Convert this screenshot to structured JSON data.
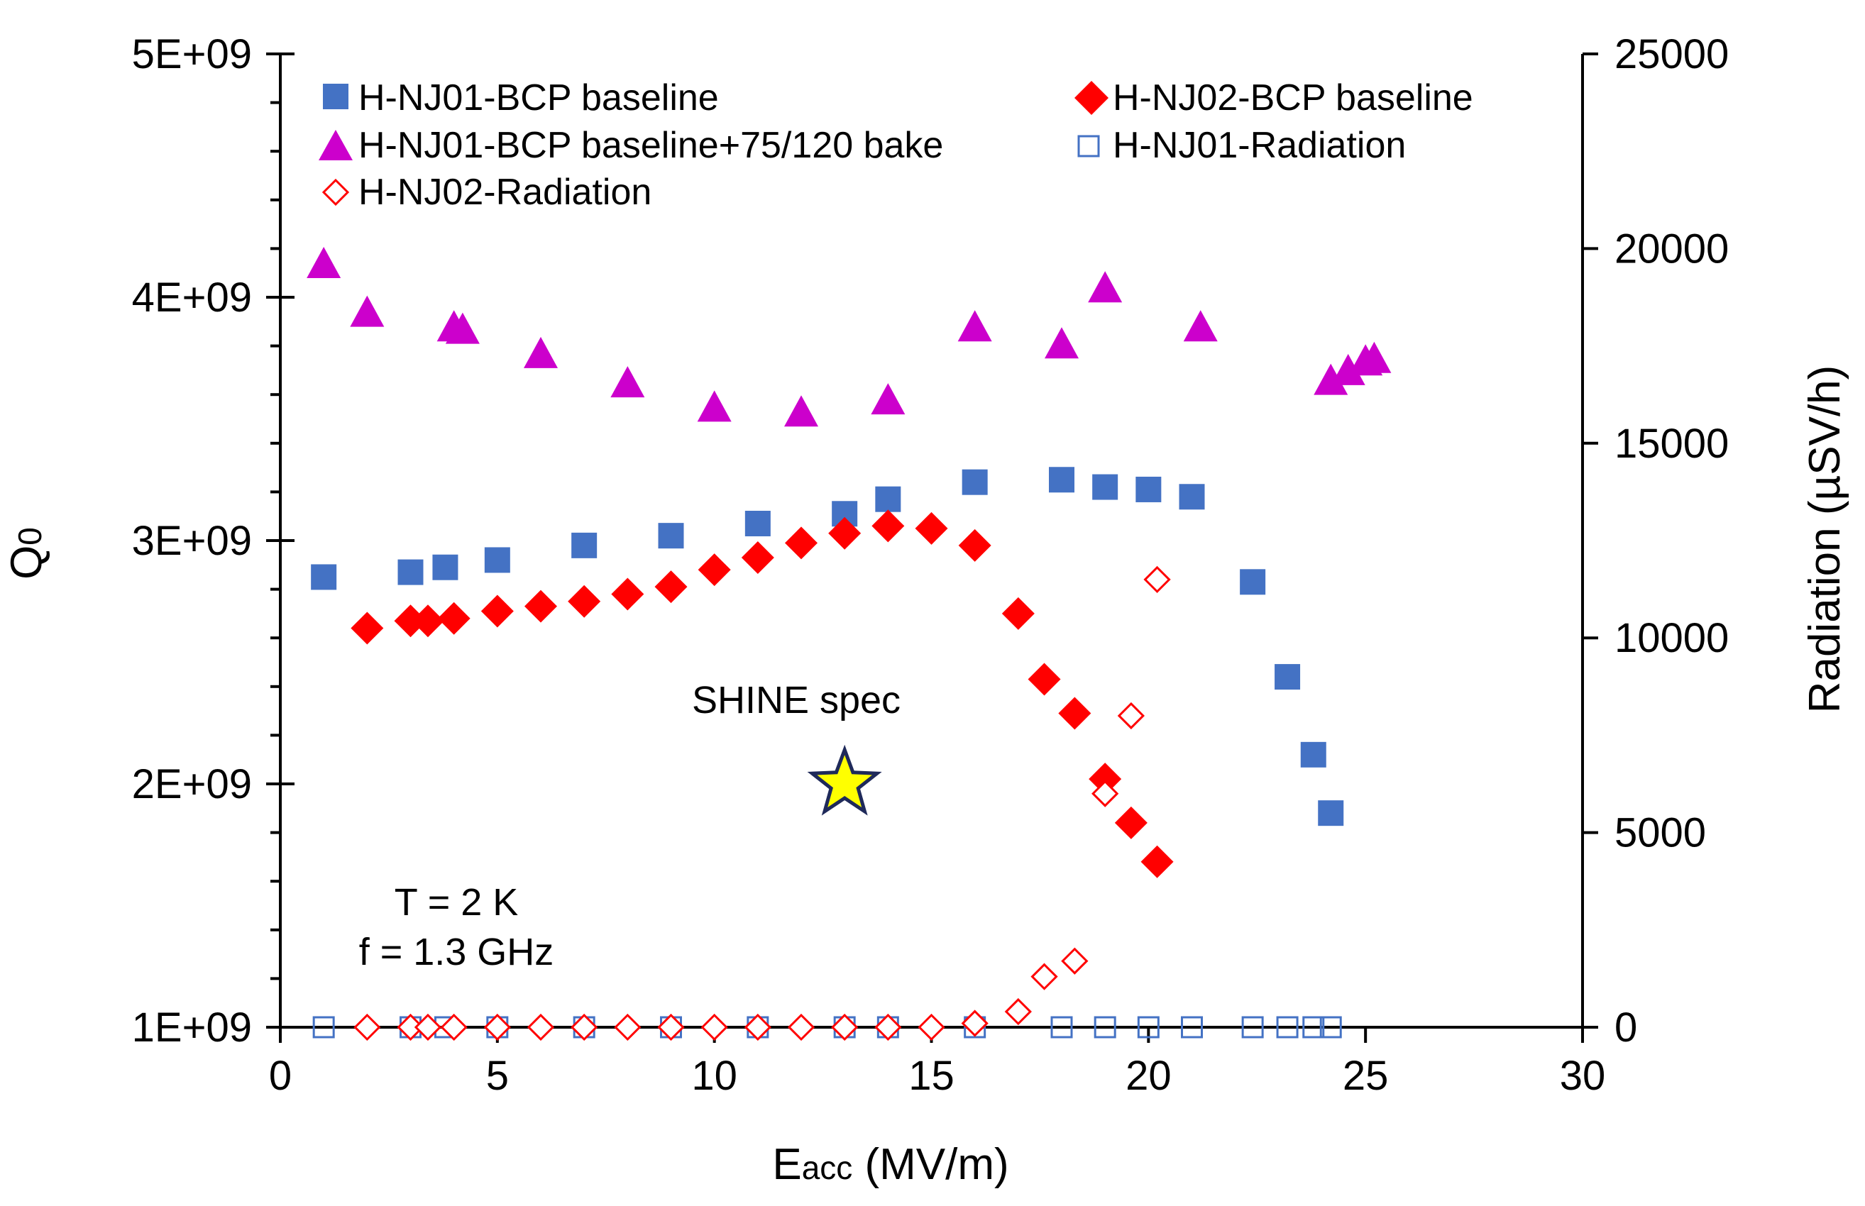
{
  "chart_data": {
    "type": "scatter",
    "title": "",
    "xlabel": "Eacc (MV/m)",
    "xlabel_main": "E",
    "xlabel_sub": "acc",
    "xlabel_rest": " (MV/m)",
    "ylabel": "Q0",
    "ylabel_main": "Q",
    "ylabel_sub": "0",
    "y2label": "Radiation (µSV/h)",
    "xlim": [
      0,
      30
    ],
    "ylim": [
      1000000000,
      5000000000
    ],
    "y2lim": [
      0,
      25000
    ],
    "grid": false,
    "legend_position": "top",
    "x_tick_labels": [
      "0",
      "5",
      "10",
      "15",
      "20",
      "25",
      "30"
    ],
    "y_tick_labels": [
      "1E+09",
      "2E+09",
      "3E+09",
      "4E+09",
      "5E+09"
    ],
    "y2_tick_labels": [
      "0",
      "5000",
      "10000",
      "15000",
      "20000",
      "25000"
    ],
    "colors": {
      "blue": "#4472C4",
      "red": "#FF0000",
      "magenta": "#CC00CC",
      "star_fill": "#FFFF00",
      "star_stroke": "#1F2A5A"
    },
    "series": [
      {
        "name": "H-NJ01-BCP baseline",
        "axis": "left",
        "marker": "square-filled",
        "color": "#4472C4",
        "x": [
          1.0,
          3.0,
          3.8,
          5.0,
          7.0,
          9.0,
          11.0,
          13.0,
          14.0,
          16.0,
          18.0,
          19.0,
          20.0,
          21.0,
          22.4,
          23.2,
          23.8,
          24.2
        ],
        "y": [
          2850000000,
          2870000000,
          2890000000,
          2920000000,
          2980000000,
          3020000000,
          3070000000,
          3110000000,
          3170000000,
          3240000000,
          3250000000,
          3220000000,
          3210000000,
          3180000000,
          2830000000,
          2440000000,
          2120000000,
          1880000000
        ]
      },
      {
        "name": "H-NJ02-BCP baseline",
        "axis": "left",
        "marker": "diamond-filled",
        "color": "#FF0000",
        "x": [
          2.0,
          3.0,
          3.4,
          4.0,
          5.0,
          6.0,
          7.0,
          8.0,
          9.0,
          10.0,
          11.0,
          12.0,
          13.0,
          14.0,
          15.0,
          16.0,
          17.0,
          17.6,
          18.3,
          19.0,
          19.6,
          20.2
        ],
        "y": [
          2640000000,
          2670000000,
          2670000000,
          2680000000,
          2710000000,
          2730000000,
          2750000000,
          2780000000,
          2810000000,
          2880000000,
          2930000000,
          2990000000,
          3030000000,
          3060000000,
          3050000000,
          2980000000,
          2700000000,
          2430000000,
          2290000000,
          2020000000,
          1840000000,
          1680000000
        ]
      },
      {
        "name": "H-NJ01-BCP baseline+75/120 bake",
        "axis": "left",
        "marker": "triangle-filled",
        "color": "#CC00CC",
        "x": [
          1.0,
          2.0,
          4.0,
          4.2,
          6.0,
          8.0,
          10.0,
          12.0,
          14.0,
          16.0,
          18.0,
          19.0,
          21.2,
          24.2,
          24.6,
          25.0,
          25.2
        ],
        "y": [
          4130000000,
          3930000000,
          3870000000,
          3860000000,
          3760000000,
          3640000000,
          3540000000,
          3520000000,
          3570000000,
          3870000000,
          3800000000,
          4030000000,
          3870000000,
          3650000000,
          3690000000,
          3730000000,
          3740000000
        ]
      },
      {
        "name": "H-NJ01-Radiation",
        "axis": "right",
        "marker": "square-open",
        "color": "#4472C4",
        "x": [
          1.0,
          3.0,
          3.8,
          5.0,
          7.0,
          9.0,
          11.0,
          13.0,
          14.0,
          16.0,
          18.0,
          19.0,
          20.0,
          21.0,
          22.4,
          23.2,
          23.8,
          24.2
        ],
        "y": [
          0,
          0,
          0,
          0,
          0,
          0,
          0,
          0,
          0,
          0,
          0,
          0,
          0,
          0,
          0,
          0,
          0,
          0
        ]
      },
      {
        "name": "H-NJ02-Radiation",
        "axis": "right",
        "marker": "diamond-open",
        "color": "#FF0000",
        "x": [
          2.0,
          3.0,
          3.4,
          4.0,
          5.0,
          6.0,
          7.0,
          8.0,
          9.0,
          10.0,
          11.0,
          12.0,
          13.0,
          14.0,
          15.0,
          16.0,
          17.0,
          17.6,
          18.3,
          19.0,
          19.6,
          20.2
        ],
        "y": [
          0,
          0,
          0,
          0,
          0,
          0,
          0,
          0,
          0,
          0,
          0,
          0,
          0,
          0,
          0,
          100,
          400,
          1300,
          1700,
          6000,
          8000,
          11500
        ]
      }
    ],
    "annotations": {
      "spec_label": "SHINE spec",
      "spec_point": {
        "x": 13.0,
        "y": 2000000000
      },
      "temperature": "T = 2 K",
      "frequency": "f = 1.3 GHz"
    }
  }
}
